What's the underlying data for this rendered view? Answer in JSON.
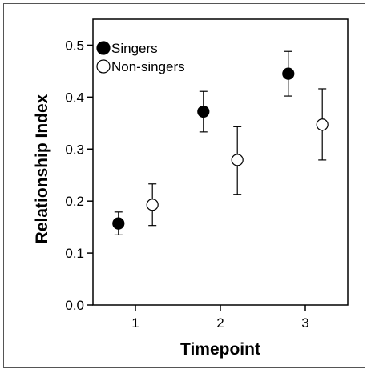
{
  "chart_data": {
    "type": "scatter",
    "title": "",
    "xlabel": "Timepoint",
    "ylabel": "Relationship Index",
    "x_ticks": [
      "1",
      "2",
      "3"
    ],
    "y_ticks": [
      "0.0",
      "0.1",
      "0.2",
      "0.3",
      "0.4",
      "0.5"
    ],
    "xlim": [
      0.5,
      3.5
    ],
    "ylim": [
      0,
      0.55
    ],
    "grid": false,
    "legend_position": "top-left",
    "error_bars": true,
    "series": [
      {
        "name": "Singers",
        "marker": "filled-circle",
        "color": "#000000",
        "x": [
          1,
          2,
          3
        ],
        "y": [
          0.157,
          0.372,
          0.445
        ],
        "err_low": [
          0.135,
          0.333,
          0.402
        ],
        "err_high": [
          0.179,
          0.411,
          0.488
        ]
      },
      {
        "name": "Non-singers",
        "marker": "open-circle",
        "color": "#000000",
        "x": [
          1,
          2,
          3
        ],
        "y": [
          0.193,
          0.279,
          0.347
        ],
        "err_low": [
          0.153,
          0.213,
          0.279
        ],
        "err_high": [
          0.233,
          0.343,
          0.416
        ]
      }
    ]
  }
}
